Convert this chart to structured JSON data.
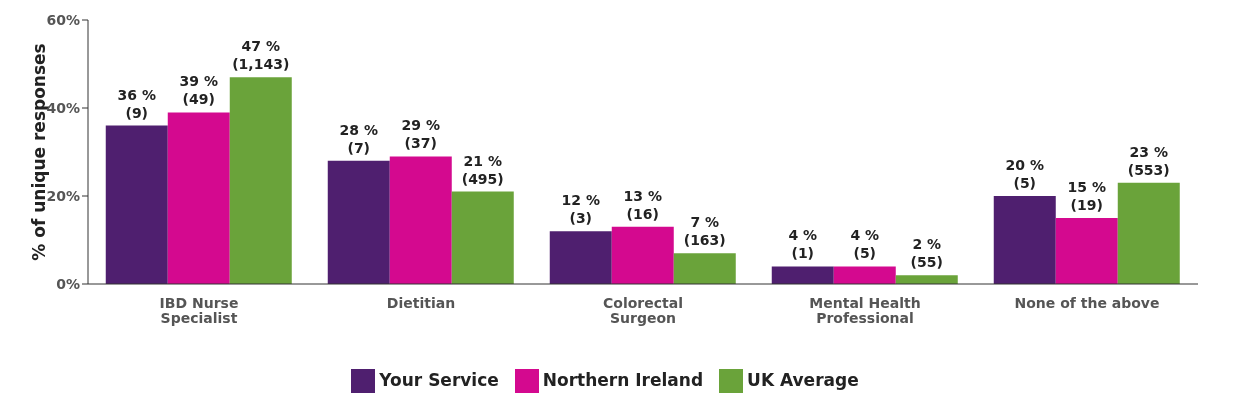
{
  "chart_data": {
    "type": "bar",
    "ylabel": "% of unique responses",
    "categories": [
      "IBD Nurse Specialist",
      "Dietitian",
      "Colorectal Surgeon",
      "Mental Health Professional",
      "None of the above"
    ],
    "series": [
      {
        "name": "Your Service",
        "color": "#4f1f6f",
        "values": [
          36,
          28,
          12,
          4,
          20
        ],
        "value_labels": [
          "36 %\n(9)",
          "28 %\n(7)",
          "12 %\n(3)",
          "4 %\n(1)",
          "20 %\n(5)"
        ]
      },
      {
        "name": "Northern Ireland",
        "color": "#d4098f",
        "values": [
          39,
          29,
          13,
          4,
          15
        ],
        "value_labels": [
          "39 %\n(49)",
          "29 %\n(37)",
          "13 %\n(16)",
          "4 %\n(5)",
          "15 %\n(19)"
        ]
      },
      {
        "name": "UK Average",
        "color": "#6aa33a",
        "values": [
          47,
          21,
          7,
          2,
          23
        ],
        "value_labels": [
          "47 %\n(1,143)",
          "21 %\n(495)",
          "7 %\n(163)",
          "2 %\n(55)",
          "23 %\n(553)"
        ]
      }
    ],
    "ylim": [
      0,
      60
    ],
    "yticks": [
      {
        "value": 0,
        "label": "0%"
      },
      {
        "value": 20,
        "label": "20%"
      },
      {
        "value": 40,
        "label": "40%"
      },
      {
        "value": 60,
        "label": "60%"
      }
    ],
    "grid": false,
    "legend": "bottom"
  }
}
